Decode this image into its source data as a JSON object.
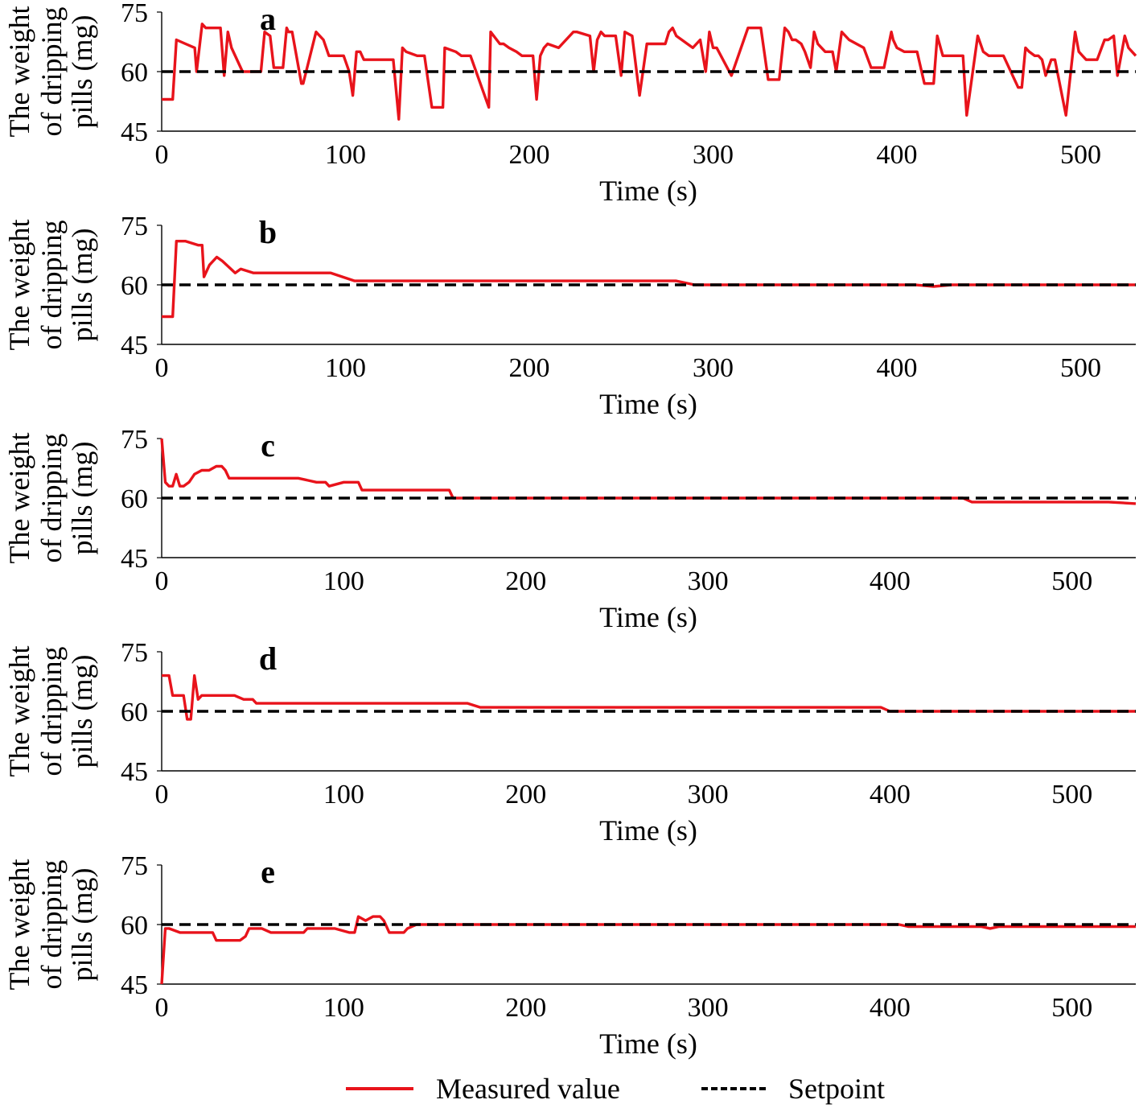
{
  "chart_data": [
    {
      "type": "line",
      "panel_label": "a",
      "xlabel": "Time (s)",
      "ylabel": [
        "The weight",
        "of dripping",
        "pills (mg)"
      ],
      "xlim": [
        0,
        530
      ],
      "ylim": [
        45,
        75
      ],
      "xticks": [
        0,
        100,
        200,
        300,
        400,
        500
      ],
      "yticks": [
        45,
        60,
        75
      ],
      "grid": false,
      "series": [
        {
          "name": "Measured value",
          "color": "#e8131b",
          "x": [
            0,
            6,
            8,
            13,
            18,
            19,
            22,
            24,
            32,
            34,
            36,
            38,
            44,
            48,
            54,
            56,
            59,
            61,
            66,
            68,
            69,
            71,
            76,
            77,
            84,
            88,
            91,
            92,
            99,
            102,
            104,
            106,
            108,
            110,
            112,
            114,
            118,
            126,
            129,
            131,
            133,
            139,
            143,
            147,
            153,
            154,
            160,
            163,
            168,
            178,
            179,
            184,
            186,
            189,
            193,
            196,
            202,
            204,
            206,
            208,
            210,
            216,
            222,
            224,
            226,
            233,
            235,
            237,
            239,
            241,
            247,
            250,
            252,
            256,
            260,
            264,
            274,
            276,
            278,
            280,
            283,
            286,
            289,
            293,
            296,
            298,
            300,
            302,
            310,
            319,
            321,
            324,
            326,
            330,
            336,
            339,
            341,
            343,
            345,
            348,
            350,
            353,
            355,
            357,
            359,
            361,
            365,
            367,
            370,
            374,
            382,
            386,
            388,
            393,
            397,
            398,
            400,
            404,
            406,
            408,
            411,
            415,
            420,
            422,
            425,
            433,
            436,
            438,
            444,
            447,
            450,
            452,
            454,
            458,
            466,
            468,
            470,
            472,
            475,
            477,
            479,
            481,
            484,
            486,
            492,
            497,
            499,
            501,
            503,
            505,
            509,
            513,
            515,
            518,
            520,
            524,
            526,
            530
          ],
          "y": [
            53,
            53,
            68,
            67,
            66,
            60,
            72,
            71,
            71,
            59,
            70,
            66,
            60,
            60,
            60,
            70,
            69,
            61,
            61,
            71,
            70,
            70,
            57,
            57,
            70,
            68,
            64,
            64,
            64,
            60,
            54,
            65,
            65,
            63,
            63,
            63,
            63,
            63,
            48,
            66,
            65,
            64,
            64,
            51,
            51,
            66,
            65,
            64,
            64,
            51,
            70,
            67,
            67,
            66,
            65,
            64,
            64,
            53,
            64,
            66,
            67,
            66,
            69,
            70,
            70,
            69,
            60,
            68,
            70,
            69,
            69,
            59,
            70,
            69,
            54,
            67,
            67,
            70,
            71,
            69,
            68,
            67,
            66,
            68,
            60,
            70,
            66,
            66,
            59,
            71,
            71,
            71,
            71,
            58,
            58,
            71,
            70,
            68,
            68,
            67,
            65,
            61,
            70,
            67,
            66,
            65,
            65,
            60,
            70,
            68,
            66,
            61,
            61,
            61,
            70,
            68,
            66,
            65,
            65,
            65,
            65,
            57,
            57,
            69,
            64,
            64,
            64,
            49,
            69,
            65,
            64,
            64,
            64,
            64,
            56,
            56,
            66,
            65,
            64,
            64,
            63,
            59,
            63,
            63,
            49,
            70,
            65,
            64,
            63,
            63,
            63,
            68,
            68,
            69,
            59,
            69,
            66,
            64
          ]
        },
        {
          "name": "Setpoint",
          "color": "#000000",
          "dashed": true,
          "x": [
            0,
            530
          ],
          "y": [
            60,
            60
          ]
        }
      ]
    },
    {
      "type": "line",
      "panel_label": "b",
      "xlabel": "Time (s)",
      "ylabel": [
        "The weight",
        "of dripping",
        "pills (mg)"
      ],
      "xlim": [
        0,
        530
      ],
      "ylim": [
        45,
        75
      ],
      "xticks": [
        0,
        100,
        200,
        300,
        400,
        500
      ],
      "yticks": [
        45,
        60,
        75
      ],
      "grid": false,
      "series": [
        {
          "name": "Measured value",
          "color": "#e8131b",
          "x": [
            0,
            6,
            8,
            13,
            20,
            22,
            23,
            26,
            30,
            33,
            40,
            43,
            50,
            55,
            65,
            80,
            90,
            92,
            105,
            120,
            130,
            150,
            170,
            200,
            215,
            235,
            260,
            280,
            290,
            300,
            320,
            335,
            345,
            360,
            380,
            400,
            410,
            420,
            430,
            450,
            470,
            490,
            510,
            530
          ],
          "y": [
            52,
            52,
            71,
            71,
            70,
            70,
            62,
            65,
            67,
            66,
            63,
            64,
            63,
            63,
            63,
            63,
            63,
            63,
            61,
            61,
            61,
            61,
            61,
            61,
            61,
            61,
            61,
            61,
            60,
            60,
            60,
            60,
            60,
            60,
            60,
            60,
            60,
            59.6,
            60,
            60,
            60,
            60,
            60,
            60
          ]
        },
        {
          "name": "Setpoint",
          "color": "#000000",
          "dashed": true,
          "x": [
            0,
            530
          ],
          "y": [
            60,
            60
          ]
        }
      ]
    },
    {
      "type": "line",
      "panel_label": "c",
      "xlabel": "Time (s)",
      "ylabel": [
        "The weight",
        "of dripping",
        "pills (mg)"
      ],
      "xlim": [
        0,
        535
      ],
      "ylim": [
        45,
        75
      ],
      "xticks": [
        0,
        100,
        200,
        300,
        400,
        500
      ],
      "yticks": [
        45,
        60,
        75
      ],
      "grid": false,
      "series": [
        {
          "name": "Measured value",
          "color": "#e8131b",
          "x": [
            0,
            2,
            4,
            6,
            8,
            10,
            12,
            15,
            18,
            22,
            26,
            30,
            33,
            35,
            37,
            40,
            45,
            55,
            65,
            75,
            85,
            90,
            92,
            100,
            108,
            110,
            120,
            130,
            140,
            150,
            158,
            160,
            170,
            200,
            250,
            300,
            350,
            400,
            440,
            445,
            460,
            480,
            500,
            520,
            535
          ],
          "y": [
            75,
            64,
            63,
            63,
            66,
            63,
            63,
            64,
            66,
            67,
            67,
            68,
            68,
            67,
            65,
            65,
            65,
            65,
            65,
            65,
            64,
            64,
            63,
            64,
            64,
            62,
            62,
            62,
            62,
            62,
            62,
            60,
            60,
            60,
            60,
            60,
            60,
            60,
            60,
            59,
            59,
            59,
            59,
            59,
            58.6
          ]
        },
        {
          "name": "Setpoint",
          "color": "#000000",
          "dashed": true,
          "x": [
            0,
            535
          ],
          "y": [
            60,
            60
          ]
        }
      ]
    },
    {
      "type": "line",
      "panel_label": "d",
      "xlabel": "Time (s)",
      "ylabel": [
        "The weight",
        "of dripping",
        "pills (mg)"
      ],
      "xlim": [
        0,
        535
      ],
      "ylim": [
        45,
        75
      ],
      "xticks": [
        0,
        100,
        200,
        300,
        400,
        500
      ],
      "yticks": [
        45,
        60,
        75
      ],
      "grid": false,
      "series": [
        {
          "name": "Measured value",
          "color": "#e8131b",
          "x": [
            0,
            4,
            6,
            12,
            14,
            16,
            18,
            20,
            22,
            25,
            30,
            35,
            40,
            45,
            50,
            52,
            55,
            70,
            80,
            90,
            100,
            110,
            120,
            130,
            140,
            150,
            160,
            168,
            175,
            180,
            200,
            250,
            300,
            350,
            395,
            400,
            420,
            450,
            480,
            500,
            535
          ],
          "y": [
            69,
            69,
            64,
            64,
            58,
            58,
            69,
            63,
            64,
            64,
            64,
            64,
            64,
            63,
            63,
            62,
            62,
            62,
            62,
            62,
            62,
            62,
            62,
            62,
            62,
            62,
            62,
            62,
            61,
            61,
            61,
            61,
            61,
            61,
            61,
            60,
            60,
            60,
            60,
            60,
            60
          ]
        },
        {
          "name": "Setpoint",
          "color": "#000000",
          "dashed": true,
          "x": [
            0,
            535
          ],
          "y": [
            60,
            60
          ]
        }
      ]
    },
    {
      "type": "line",
      "panel_label": "e",
      "xlabel": "Time (s)",
      "ylabel": [
        "The weight",
        "of dripping",
        "pills (mg)"
      ],
      "xlim": [
        0,
        535
      ],
      "ylim": [
        45,
        75
      ],
      "xticks": [
        0,
        100,
        200,
        300,
        400,
        500
      ],
      "yticks": [
        45,
        60,
        75
      ],
      "grid": false,
      "series": [
        {
          "name": "Measured value",
          "color": "#e8131b",
          "x": [
            0,
            2,
            4,
            10,
            16,
            28,
            30,
            43,
            46,
            48,
            55,
            60,
            70,
            78,
            80,
            95,
            103,
            106,
            108,
            112,
            116,
            120,
            122,
            125,
            133,
            135,
            140,
            150,
            200,
            250,
            300,
            350,
            400,
            405,
            410,
            450,
            455,
            460,
            500,
            535
          ],
          "y": [
            45,
            59,
            59,
            58,
            58,
            58,
            56,
            56,
            57,
            59,
            59,
            58,
            58,
            58,
            59,
            59,
            58,
            58,
            62,
            61,
            62,
            62,
            61,
            58,
            58,
            59,
            60,
            60,
            60,
            60,
            60,
            60,
            60,
            60,
            59.5,
            59.5,
            59,
            59.5,
            59.5,
            59.5
          ]
        },
        {
          "name": "Setpoint",
          "color": "#000000",
          "dashed": true,
          "x": [
            0,
            535
          ],
          "y": [
            60,
            60
          ]
        }
      ]
    }
  ],
  "legend": {
    "placement": "bottom-center",
    "items": [
      {
        "label": "Measured value",
        "color": "#e8131b",
        "dashed": false
      },
      {
        "label": "Setpoint",
        "color": "#000000",
        "dashed": true
      }
    ]
  }
}
